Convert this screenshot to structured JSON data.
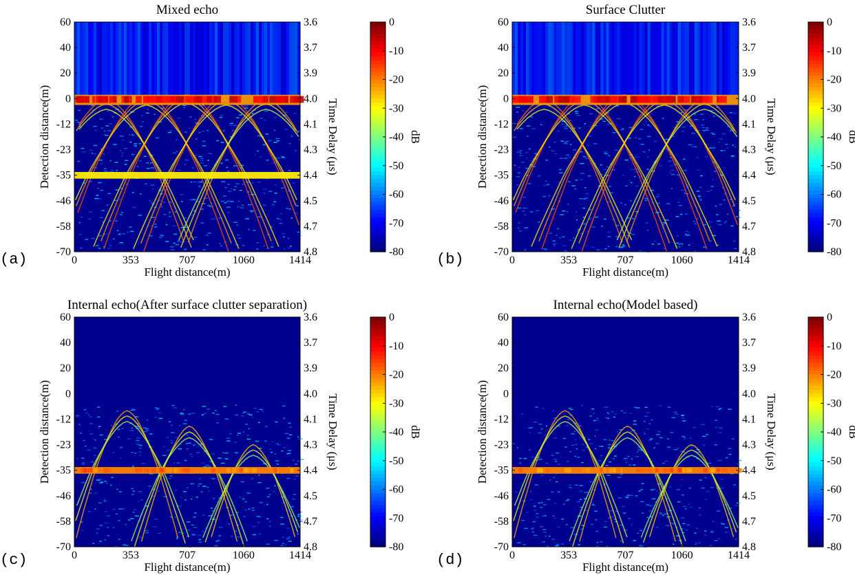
{
  "chart_data": [
    {
      "type": "heatmap",
      "panel_label": "(a)",
      "title": "Mixed echo",
      "xlabel": "Flight distance(m)",
      "ylabel": "Detection distance(m)",
      "y2label": "Time Delay (μs)",
      "colorbar_label": "dB",
      "xticks": [
        "0",
        "353",
        "707",
        "1060",
        "1414"
      ],
      "yticks": [
        "60",
        "40",
        "20",
        "0",
        "-12",
        "-23",
        "-35",
        "-46",
        "-58",
        "-70"
      ],
      "y2ticks": [
        "3.6",
        "3.7",
        "3.9",
        "4.0",
        "4.1",
        "4.3",
        "4.4",
        "4.5",
        "4.7",
        "4.8"
      ],
      "cbticks": [
        "0",
        "-10",
        "-20",
        "-30",
        "-40",
        "-50",
        "-60",
        "-70",
        "-80"
      ],
      "xlim": [
        0,
        1414
      ],
      "ylim": [
        -70,
        60
      ],
      "clim": [
        -80,
        0
      ],
      "features": {
        "surface": true,
        "layer_depth": -35,
        "layer_strength": 0.55,
        "hyperbolas": [
          [
            200,
            0,
            0.9
          ],
          [
            450,
            2,
            1.0
          ],
          [
            700,
            3,
            1.0
          ],
          [
            950,
            2,
            0.95
          ],
          [
            1200,
            0,
            0.8
          ]
        ],
        "internal": false
      }
    },
    {
      "type": "heatmap",
      "panel_label": "(b)",
      "title": "Surface Clutter",
      "xlabel": "Flight distance(m)",
      "ylabel": "Detection distance(m)",
      "y2label": "Time Delay (μs)",
      "colorbar_label": "dB",
      "xticks": [
        "0",
        "353",
        "707",
        "1060",
        "1414"
      ],
      "yticks": [
        "60",
        "40",
        "20",
        "0",
        "-12",
        "-23",
        "-35",
        "-46",
        "-58",
        "-70"
      ],
      "y2ticks": [
        "3.6",
        "3.7",
        "3.9",
        "4.0",
        "4.1",
        "4.3",
        "4.4",
        "4.5",
        "4.7",
        "4.8"
      ],
      "cbticks": [
        "0",
        "-10",
        "-20",
        "-30",
        "-40",
        "-50",
        "-60",
        "-70",
        "-80"
      ],
      "xlim": [
        0,
        1414
      ],
      "ylim": [
        -70,
        60
      ],
      "clim": [
        -80,
        0
      ],
      "features": {
        "surface": true,
        "layer_depth": null,
        "layer_strength": 0,
        "hyperbolas": [
          [
            200,
            0,
            0.9
          ],
          [
            450,
            2,
            1.0
          ],
          [
            700,
            3,
            1.0
          ],
          [
            950,
            2,
            0.95
          ],
          [
            1200,
            0,
            0.8
          ]
        ],
        "internal": false
      }
    },
    {
      "type": "heatmap",
      "panel_label": "(c)",
      "title": "Internal echo(After surface clutter separation)",
      "xlabel": "Flight distance(m)",
      "ylabel": "Detection distance(m)",
      "y2label": "Time Delay (μs)",
      "colorbar_label": "dB",
      "xticks": [
        "0",
        "353",
        "707",
        "1060",
        "1414"
      ],
      "yticks": [
        "60",
        "40",
        "20",
        "0",
        "-12",
        "-23",
        "-35",
        "-46",
        "-58",
        "-70"
      ],
      "y2ticks": [
        "3.6",
        "3.7",
        "3.9",
        "4.0",
        "4.1",
        "4.3",
        "4.4",
        "4.5",
        "4.7",
        "4.8"
      ],
      "cbticks": [
        "0",
        "-10",
        "-20",
        "-30",
        "-40",
        "-50",
        "-60",
        "-70",
        "-80"
      ],
      "xlim": [
        0,
        1414
      ],
      "ylim": [
        -70,
        60
      ],
      "clim": [
        -80,
        0
      ],
      "features": {
        "surface": false,
        "layer_depth": -35,
        "layer_strength": 0.85,
        "hyperbolas": [
          [
            330,
            -8,
            0.75
          ],
          [
            720,
            -15,
            0.7
          ],
          [
            1120,
            -23,
            0.65
          ]
        ],
        "internal": true
      }
    },
    {
      "type": "heatmap",
      "panel_label": "(d)",
      "title": "Internal echo(Model based)",
      "xlabel": "Flight distance(m)",
      "ylabel": "Detection distance(m)",
      "y2label": "Time Delay (μs)",
      "colorbar_label": "dB",
      "xticks": [
        "0",
        "353",
        "707",
        "1060",
        "1414"
      ],
      "yticks": [
        "60",
        "40",
        "20",
        "0",
        "-12",
        "-23",
        "-35",
        "-46",
        "-58",
        "-70"
      ],
      "y2ticks": [
        "3.6",
        "3.7",
        "3.9",
        "4.0",
        "4.1",
        "4.3",
        "4.4",
        "4.5",
        "4.7",
        "4.8"
      ],
      "cbticks": [
        "0",
        "-10",
        "-20",
        "-30",
        "-40",
        "-50",
        "-60",
        "-70",
        "-80"
      ],
      "xlim": [
        0,
        1414
      ],
      "ylim": [
        -70,
        60
      ],
      "clim": [
        -80,
        0
      ],
      "features": {
        "surface": false,
        "layer_depth": -35,
        "layer_strength": 0.85,
        "hyperbolas": [
          [
            330,
            -8,
            0.75
          ],
          [
            720,
            -15,
            0.7
          ],
          [
            1120,
            -23,
            0.65
          ]
        ],
        "internal": true
      }
    }
  ]
}
